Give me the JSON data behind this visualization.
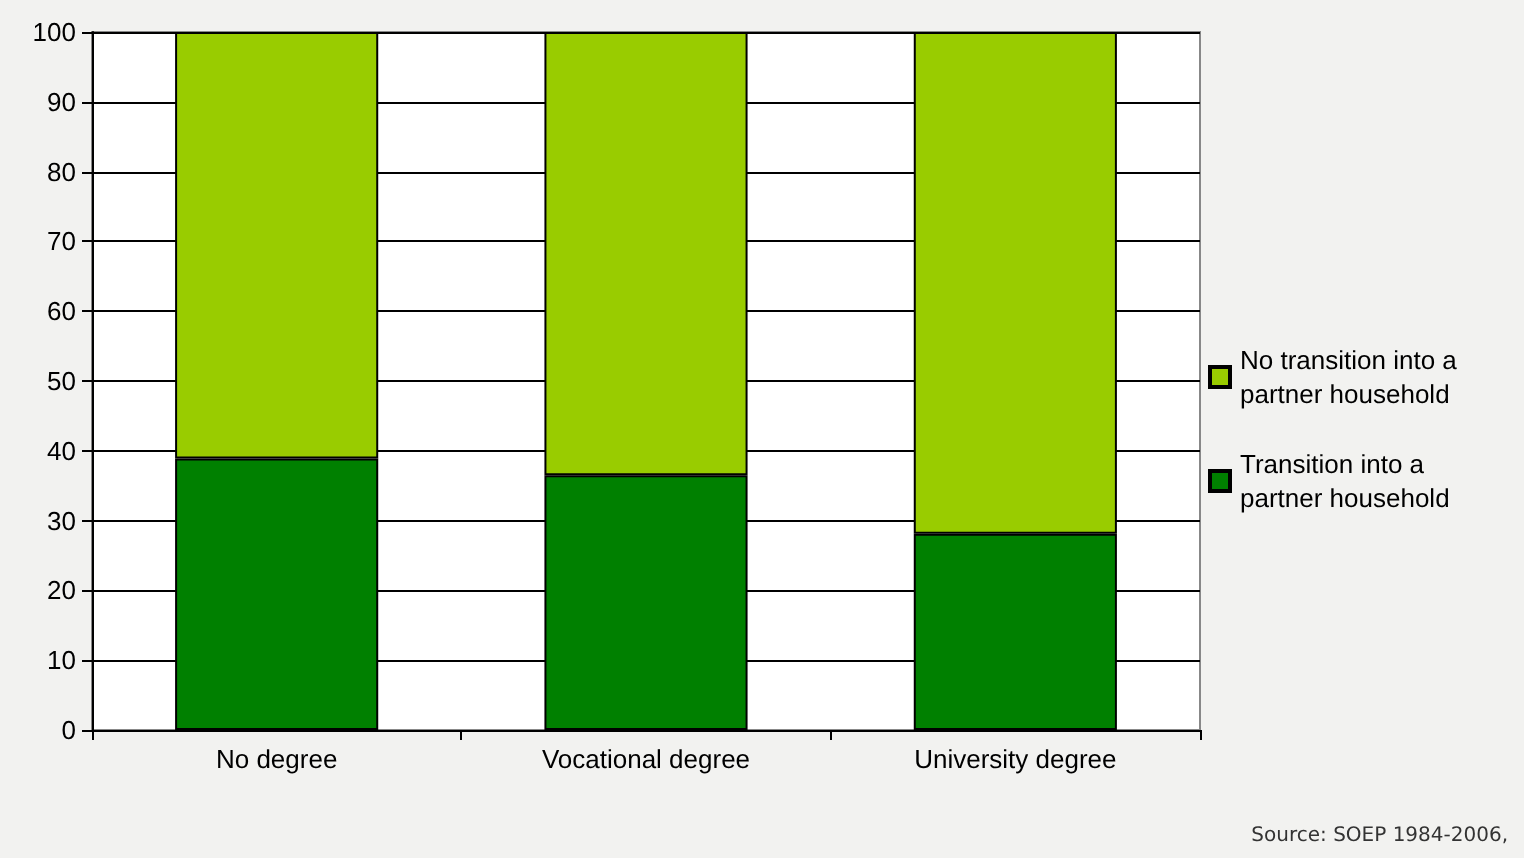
{
  "chart_data": {
    "type": "bar",
    "stacked": true,
    "categories": [
      "No degree",
      "Vocational degree",
      "University degree"
    ],
    "series": [
      {
        "name": "Transition into a partner household",
        "color": "#008000",
        "values": [
          38.9,
          36.5,
          28.1
        ]
      },
      {
        "name": "No transition into a partner household",
        "color": "#99cc00",
        "values": [
          61.1,
          63.5,
          71.9
        ]
      }
    ],
    "ylim": [
      0,
      100
    ],
    "yticks": [
      0,
      10,
      20,
      30,
      40,
      50,
      60,
      70,
      80,
      90,
      100
    ],
    "grid": "y",
    "legend": "right",
    "annotations": [
      "Source: SOEP 1984-2006,"
    ]
  }
}
